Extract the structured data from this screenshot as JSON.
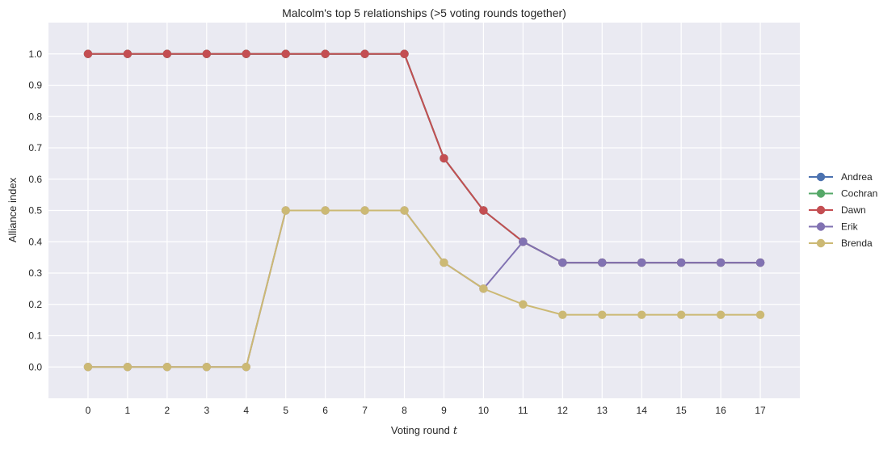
{
  "chart_data": {
    "type": "line",
    "title": "Malcolm's top 5 relationships (>5 voting rounds together)",
    "xlabel": "Voting round",
    "xlabel_var": "t",
    "ylabel": "Alliance index",
    "x": [
      0,
      1,
      2,
      3,
      4,
      5,
      6,
      7,
      8,
      9,
      10,
      11,
      12,
      13,
      14,
      15,
      16,
      17
    ],
    "xlim": [
      -1,
      18
    ],
    "ylim": [
      -0.1,
      1.1
    ],
    "yticks": [
      "0.0",
      "0.1",
      "0.2",
      "0.3",
      "0.4",
      "0.5",
      "0.6",
      "0.7",
      "0.8",
      "0.9",
      "1.0"
    ],
    "grid": true,
    "legend_position": "center-right outside",
    "background": "#EAEAF2",
    "series": [
      {
        "name": "Andrea",
        "color": "#4C72B0",
        "values": [
          1.0,
          1.0,
          1.0,
          1.0,
          1.0,
          1.0,
          1.0,
          1.0,
          1.0,
          0.6667,
          0.5,
          0.4,
          0.3333,
          0.3333,
          0.3333,
          0.3333,
          0.3333,
          0.3333
        ]
      },
      {
        "name": "Cochran",
        "color": "#55A868",
        "values": [
          1.0,
          1.0,
          1.0,
          1.0,
          1.0,
          1.0,
          1.0,
          1.0,
          1.0,
          0.6667,
          0.5,
          0.4,
          0.3333,
          0.3333,
          0.3333,
          0.3333,
          0.3333,
          0.3333
        ]
      },
      {
        "name": "Dawn",
        "color": "#C44E52",
        "values": [
          1.0,
          1.0,
          1.0,
          1.0,
          1.0,
          1.0,
          1.0,
          1.0,
          1.0,
          0.6667,
          0.5,
          0.4,
          0.3333,
          0.3333,
          0.3333,
          0.3333,
          0.3333,
          0.3333
        ]
      },
      {
        "name": "Erik",
        "color": "#8172B2",
        "values": [
          0.0,
          0.0,
          0.0,
          0.0,
          0.0,
          0.5,
          0.5,
          0.5,
          0.5,
          0.3333,
          0.25,
          0.4,
          0.3333,
          0.3333,
          0.3333,
          0.3333,
          0.3333,
          0.3333
        ]
      },
      {
        "name": "Brenda",
        "color": "#CCB974",
        "values": [
          0.0,
          0.0,
          0.0,
          0.0,
          0.0,
          0.5,
          0.5,
          0.5,
          0.5,
          0.3333,
          0.25,
          0.2,
          0.1667,
          0.1667,
          0.1667,
          0.1667,
          0.1667,
          0.1667
        ]
      }
    ]
  }
}
